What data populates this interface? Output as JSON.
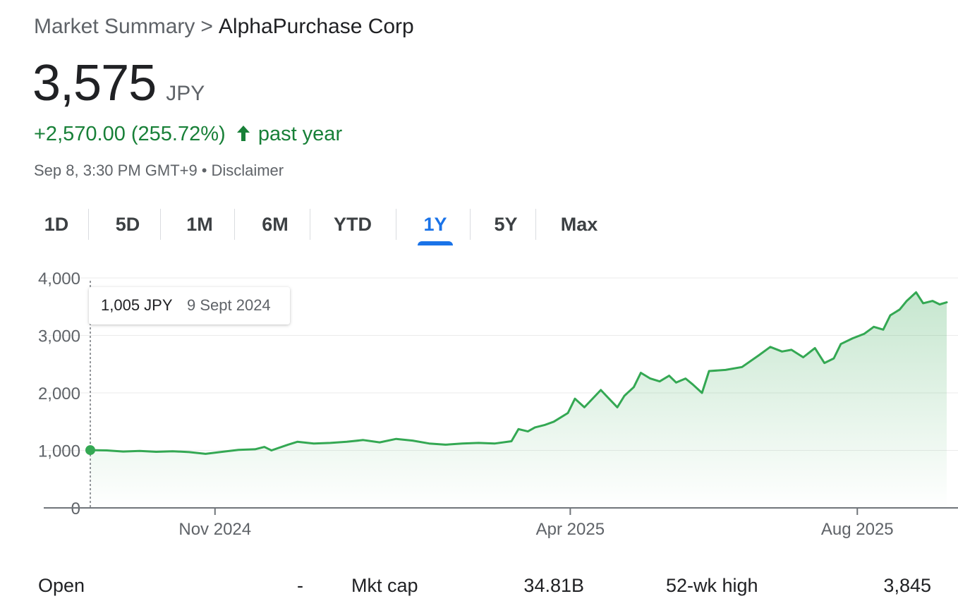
{
  "breadcrumb": {
    "root": "Market Summary",
    "separator": ">",
    "company": "AlphaPurchase Corp"
  },
  "quote": {
    "price": "3,575",
    "currency": "JPY",
    "change": "+2,570.00 (255.72%)",
    "period": "past year",
    "timestamp": "Sep 8, 3:30 PM GMT+9",
    "separator_dot": "•",
    "disclaimer": "Disclaimer"
  },
  "tabs": [
    {
      "label": "1D",
      "active": false
    },
    {
      "label": "5D",
      "active": false
    },
    {
      "label": "1M",
      "active": false
    },
    {
      "label": "6M",
      "active": false
    },
    {
      "label": "YTD",
      "active": false
    },
    {
      "label": "1Y",
      "active": true
    },
    {
      "label": "5Y",
      "active": false
    },
    {
      "label": "Max",
      "active": false
    }
  ],
  "tooltip": {
    "value": "1,005 JPY",
    "date": "9 Sept 2024"
  },
  "colors": {
    "up": "#188038",
    "line": "#34a853",
    "accent": "#1a73e8",
    "muted": "#5f6368"
  },
  "chart_data": {
    "type": "area",
    "ylim": [
      0,
      4000
    ],
    "y_ticks": [
      "0",
      "1,000",
      "2,000",
      "3,000",
      "4,000"
    ],
    "x_ticks": [
      {
        "label": "Nov 2024",
        "date": "2024-11-01"
      },
      {
        "label": "Apr 2025",
        "date": "2025-04-01"
      },
      {
        "label": "Aug 2025",
        "date": "2025-08-01"
      }
    ],
    "x_range": [
      "2024-09-09",
      "2025-09-08"
    ],
    "series": [
      {
        "points": [
          [
            "2024-09-09",
            1005
          ],
          [
            "2024-09-16",
            1000
          ],
          [
            "2024-09-23",
            980
          ],
          [
            "2024-09-30",
            990
          ],
          [
            "2024-10-07",
            975
          ],
          [
            "2024-10-14",
            985
          ],
          [
            "2024-10-21",
            970
          ],
          [
            "2024-10-28",
            940
          ],
          [
            "2024-11-04",
            975
          ],
          [
            "2024-11-11",
            1010
          ],
          [
            "2024-11-18",
            1020
          ],
          [
            "2024-11-22",
            1060
          ],
          [
            "2024-11-25",
            1000
          ],
          [
            "2024-12-02",
            1100
          ],
          [
            "2024-12-06",
            1150
          ],
          [
            "2024-12-13",
            1120
          ],
          [
            "2024-12-20",
            1130
          ],
          [
            "2024-12-27",
            1150
          ],
          [
            "2025-01-03",
            1180
          ],
          [
            "2025-01-10",
            1140
          ],
          [
            "2025-01-17",
            1200
          ],
          [
            "2025-01-24",
            1170
          ],
          [
            "2025-01-31",
            1120
          ],
          [
            "2025-02-07",
            1100
          ],
          [
            "2025-02-14",
            1120
          ],
          [
            "2025-02-21",
            1130
          ],
          [
            "2025-02-28",
            1120
          ],
          [
            "2025-03-07",
            1160
          ],
          [
            "2025-03-10",
            1370
          ],
          [
            "2025-03-14",
            1330
          ],
          [
            "2025-03-17",
            1400
          ],
          [
            "2025-03-21",
            1440
          ],
          [
            "2025-03-25",
            1500
          ],
          [
            "2025-03-31",
            1650
          ],
          [
            "2025-04-03",
            1900
          ],
          [
            "2025-04-07",
            1750
          ],
          [
            "2025-04-14",
            2050
          ],
          [
            "2025-04-17",
            1920
          ],
          [
            "2025-04-21",
            1750
          ],
          [
            "2025-04-24",
            1950
          ],
          [
            "2025-04-28",
            2100
          ],
          [
            "2025-05-01",
            2350
          ],
          [
            "2025-05-05",
            2250
          ],
          [
            "2025-05-09",
            2200
          ],
          [
            "2025-05-13",
            2300
          ],
          [
            "2025-05-16",
            2180
          ],
          [
            "2025-05-20",
            2250
          ],
          [
            "2025-05-23",
            2150
          ],
          [
            "2025-05-27",
            2000
          ],
          [
            "2025-05-30",
            2380
          ],
          [
            "2025-06-06",
            2400
          ],
          [
            "2025-06-13",
            2450
          ],
          [
            "2025-06-20",
            2650
          ],
          [
            "2025-06-25",
            2800
          ],
          [
            "2025-06-30",
            2720
          ],
          [
            "2025-07-04",
            2750
          ],
          [
            "2025-07-09",
            2620
          ],
          [
            "2025-07-14",
            2780
          ],
          [
            "2025-07-18",
            2520
          ],
          [
            "2025-07-22",
            2600
          ],
          [
            "2025-07-25",
            2850
          ],
          [
            "2025-07-30",
            2950
          ],
          [
            "2025-08-04",
            3030
          ],
          [
            "2025-08-08",
            3150
          ],
          [
            "2025-08-12",
            3100
          ],
          [
            "2025-08-15",
            3350
          ],
          [
            "2025-08-19",
            3450
          ],
          [
            "2025-08-22",
            3600
          ],
          [
            "2025-08-26",
            3750
          ],
          [
            "2025-08-29",
            3560
          ],
          [
            "2025-09-02",
            3600
          ],
          [
            "2025-09-05",
            3540
          ],
          [
            "2025-09-08",
            3575
          ]
        ]
      }
    ]
  },
  "stats": [
    {
      "label": "Open",
      "value": "-"
    },
    {
      "label": "Mkt cap",
      "value": "34.81B"
    },
    {
      "label": "52-wk high",
      "value": "3,845"
    }
  ]
}
